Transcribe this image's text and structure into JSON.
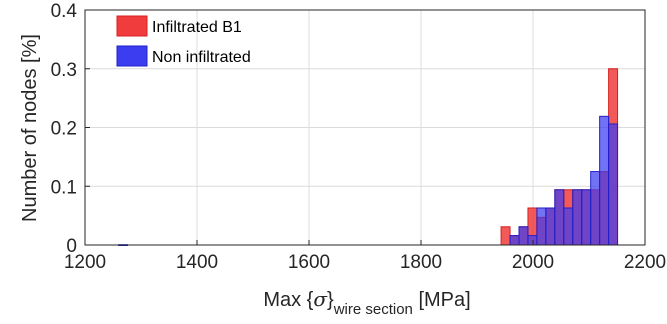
{
  "chart_data": {
    "type": "bar",
    "subtype": "overlapping-histogram",
    "title": "",
    "xlabel": {
      "prefix": "Max {",
      "sigma": "σ",
      "close": "}",
      "subscript": "wire section",
      "unit": " [MPa]"
    },
    "ylabel": "Number of nodes [%]",
    "xlim": [
      1200,
      2200
    ],
    "ylim": [
      0,
      0.4
    ],
    "xticks": [
      "1200",
      "1400",
      "1600",
      "1800",
      "2000",
      "2200"
    ],
    "yticks": [
      "0",
      "0.1",
      "0.2",
      "0.3",
      "0.4"
    ],
    "grid": true,
    "legend_position": "top-left",
    "bin_width": 16,
    "series": [
      {
        "name": "Infiltrated B1",
        "color": "#f03c3c",
        "edge_color": "#d42020",
        "bins": [
          {
            "x0": 1943,
            "value": 0.031
          },
          {
            "x0": 1959,
            "value": 0.016
          },
          {
            "x0": 1975,
            "value": 0.031
          },
          {
            "x0": 1991,
            "value": 0.063
          },
          {
            "x0": 2007,
            "value": 0.047
          },
          {
            "x0": 2023,
            "value": 0.063
          },
          {
            "x0": 2039,
            "value": 0.094
          },
          {
            "x0": 2055,
            "value": 0.094
          },
          {
            "x0": 2071,
            "value": 0.094
          },
          {
            "x0": 2087,
            "value": 0.094
          },
          {
            "x0": 2103,
            "value": 0.094
          },
          {
            "x0": 2119,
            "value": 0.125
          },
          {
            "x0": 2135,
            "value": 0.3
          }
        ]
      },
      {
        "name": "Non infiltrated",
        "color": "#3c3cf0",
        "edge_color": "#2020c8",
        "bins": [
          {
            "x0": 1260,
            "value": 0.0005
          },
          {
            "x0": 1959,
            "value": 0.016
          },
          {
            "x0": 1975,
            "value": 0.031
          },
          {
            "x0": 1991,
            "value": 0.016
          },
          {
            "x0": 2007,
            "value": 0.063
          },
          {
            "x0": 2023,
            "value": 0.063
          },
          {
            "x0": 2039,
            "value": 0.094
          },
          {
            "x0": 2055,
            "value": 0.063
          },
          {
            "x0": 2071,
            "value": 0.094
          },
          {
            "x0": 2087,
            "value": 0.094
          },
          {
            "x0": 2103,
            "value": 0.125
          },
          {
            "x0": 2119,
            "value": 0.219
          },
          {
            "x0": 2135,
            "value": 0.206
          }
        ]
      }
    ]
  }
}
